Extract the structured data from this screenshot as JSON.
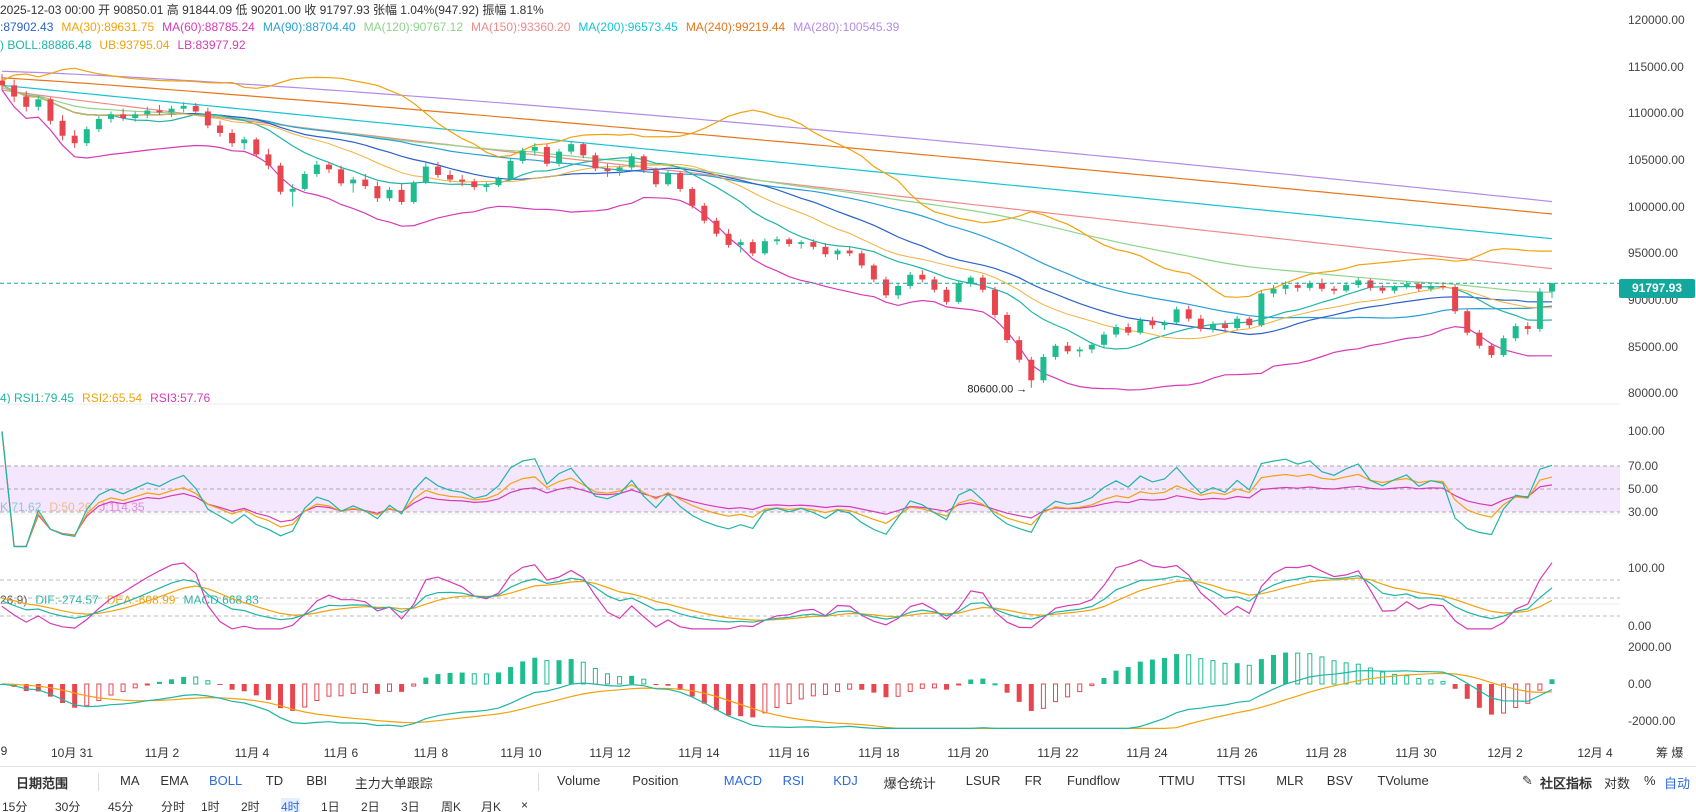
{
  "header": {
    "ohlc": "2025-12-03 00:00  开 90850.01  高 91844.09  低 90201.00  收 91797.93  张幅 1.04%(947.92)  振幅 1.81%",
    "ma_items": [
      {
        "text": ":87902.43",
        "color": "#2a62c9"
      },
      {
        "text": "MA(30):89631.75",
        "color": "#f2a20c"
      },
      {
        "text": "MA(60):88785.24",
        "color": "#d63ab8"
      },
      {
        "text": "MA(90):88704.40",
        "color": "#2b9fd8"
      },
      {
        "text": "MA(120):90767.12",
        "color": "#8fd48a"
      },
      {
        "text": "MA(150):93360.20",
        "color": "#f08a8a"
      },
      {
        "text": "MA(200):96573.45",
        "color": "#14c4d4"
      },
      {
        "text": "MA(240):99219.44",
        "color": "#e8761c"
      },
      {
        "text": "MA(280):100545.39",
        "color": "#b48ae8"
      }
    ],
    "boll_items": [
      {
        "text": ") BOLL:88886.48",
        "color": "#1fb5a6"
      },
      {
        "text": "UB:93795.04",
        "color": "#f2a20c"
      },
      {
        "text": "LB:83977.92",
        "color": "#d63ab8"
      }
    ]
  },
  "rsi_legend": [
    {
      "text": "4) RSI1:79.45",
      "color": "#1fb5a6"
    },
    {
      "text": "RSI2:65.54",
      "color": "#f2a20c"
    },
    {
      "text": "RSI3:57.76",
      "color": "#d63ab8"
    }
  ],
  "kdj_legend": [
    {
      "text": "K:71.62",
      "color": "#1fb5a6"
    },
    {
      "text": "D:50.26",
      "color": "#f2a20c"
    },
    {
      "text": "J:114.35",
      "color": "#d63ab8"
    }
  ],
  "macd_legend": [
    {
      "text": "26,9)",
      "color": "#555555"
    },
    {
      "text": "DIF:-274.57",
      "color": "#1fb5a6"
    },
    {
      "text": "DEA:-608.99",
      "color": "#f2a20c"
    },
    {
      "text": "MACD:668.83",
      "color": "#1fb5a6"
    }
  ],
  "price_axis": [
    "120000.00",
    "115000.00",
    "110000.00",
    "105000.00",
    "100000.00",
    "95000.00",
    "90000.00",
    "85000.00",
    "80000.00"
  ],
  "rsi_axis": [
    "100.00",
    "70.00",
    "50.00",
    "30.00"
  ],
  "kdj_axis": [
    "100.00",
    "0.00"
  ],
  "macd_axis": [
    "2000.00",
    "0.00",
    "-2000.00"
  ],
  "current_price": "91797.93",
  "low_label": "80600.00 →",
  "x_axis": [
    "9",
    "10月 31",
    "11月 2",
    "11月 4",
    "11月 6",
    "11月 8",
    "11月 10",
    "11月 12",
    "11月 14",
    "11月 16",
    "11月 18",
    "11月 20",
    "11月 22",
    "11月 24",
    "11月 26",
    "11月 28",
    "11月 30",
    "12月 2",
    "12月 4"
  ],
  "x_axis_extra": "筹  爆",
  "toolbar": {
    "date_range": "日期范围",
    "left_items": [
      "MA",
      "EMA",
      "BOLL",
      "TD",
      "BBI",
      "主力大单跟踪"
    ],
    "left_active": "BOLL",
    "right_items": [
      "Volume",
      "Position",
      "MACD",
      "RSI",
      "KDJ",
      "爆仓统计",
      "LSUR",
      "FR",
      "Fundflow",
      "TTMU",
      "TTSI",
      "MLR",
      "BSV",
      "TVolume"
    ],
    "right_active": [
      "MACD",
      "RSI",
      "KDJ"
    ],
    "community": "社区指标",
    "log": "对数",
    "percent": "%",
    "auto": "自动"
  },
  "bottom": {
    "items": [
      "15分",
      "30分",
      "45分",
      "分时",
      "1时",
      "2时",
      "4时",
      "1日",
      "2日",
      "3日",
      "周K",
      "月K",
      "×"
    ],
    "active": "4时"
  },
  "chart_data": [
    {
      "type": "candlestick",
      "ylim": [
        80000,
        120000
      ],
      "x_range": [
        "10月 30",
        "12月 3"
      ],
      "candles": [
        [
          113500,
          114200,
          112500,
          113000
        ],
        [
          113000,
          113600,
          111200,
          111800
        ],
        [
          111800,
          112400,
          110200,
          110700
        ],
        [
          110700,
          111900,
          110300,
          111500
        ],
        [
          111500,
          111700,
          108800,
          109200
        ],
        [
          109200,
          109800,
          107100,
          107600
        ],
        [
          107600,
          108200,
          106300,
          106800
        ],
        [
          106800,
          108600,
          106500,
          108300
        ],
        [
          108300,
          109700,
          108000,
          109400
        ],
        [
          109400,
          110200,
          109000,
          109900
        ],
        [
          109900,
          110500,
          109200,
          109500
        ],
        [
          109500,
          110200,
          109100,
          109900
        ],
        [
          109900,
          110700,
          109500,
          110300
        ],
        [
          110300,
          110900,
          109800,
          110100
        ],
        [
          110100,
          110800,
          109600,
          110500
        ],
        [
          110500,
          111200,
          110100,
          110800
        ],
        [
          110800,
          111100,
          109900,
          110200
        ],
        [
          110200,
          110600,
          108400,
          108700
        ],
        [
          108700,
          109200,
          107500,
          107900
        ],
        [
          107900,
          108300,
          106400,
          106800
        ],
        [
          106800,
          107500,
          106100,
          107200
        ],
        [
          107200,
          107400,
          105300,
          105600
        ],
        [
          105600,
          106200,
          104000,
          104400
        ],
        [
          104400,
          104700,
          101300,
          101600
        ],
        [
          101600,
          102400,
          100000,
          101900
        ],
        [
          101900,
          103800,
          101700,
          103500
        ],
        [
          103500,
          104900,
          103200,
          104500
        ],
        [
          104500,
          104800,
          103600,
          104000
        ],
        [
          104000,
          104400,
          102200,
          102500
        ],
        [
          102500,
          103200,
          101500,
          102900
        ],
        [
          102900,
          103500,
          101900,
          102200
        ],
        [
          102200,
          102700,
          100500,
          100900
        ],
        [
          100900,
          102100,
          100600,
          101800
        ],
        [
          101800,
          102500,
          100200,
          100500
        ],
        [
          100500,
          102800,
          100300,
          102600
        ],
        [
          102600,
          104700,
          102400,
          104300
        ],
        [
          104300,
          104800,
          103100,
          103400
        ],
        [
          103400,
          103900,
          102600,
          102900
        ],
        [
          102900,
          103400,
          102200,
          102700
        ],
        [
          102700,
          103000,
          101800,
          102100
        ],
        [
          102100,
          102600,
          101600,
          102300
        ],
        [
          102300,
          103200,
          102100,
          103000
        ],
        [
          103000,
          105200,
          102800,
          104900
        ],
        [
          104900,
          106300,
          104600,
          106000
        ],
        [
          106000,
          106800,
          105500,
          106400
        ],
        [
          106400,
          106700,
          104300,
          104600
        ],
        [
          104600,
          106200,
          104300,
          105900
        ],
        [
          105900,
          107000,
          105600,
          106700
        ],
        [
          106700,
          106900,
          105200,
          105500
        ],
        [
          105500,
          105800,
          103800,
          104100
        ],
        [
          104100,
          104600,
          103200,
          103800
        ],
        [
          103800,
          104400,
          103300,
          104200
        ],
        [
          104200,
          105700,
          103900,
          105400
        ],
        [
          105400,
          105600,
          103600,
          103900
        ],
        [
          103900,
          104200,
          102100,
          102400
        ],
        [
          102400,
          103900,
          102200,
          103600
        ],
        [
          103600,
          103800,
          101600,
          101900
        ],
        [
          101900,
          102100,
          99800,
          100100
        ],
        [
          100100,
          100400,
          98200,
          98500
        ],
        [
          98500,
          98800,
          96800,
          97100
        ],
        [
          97100,
          97600,
          95600,
          95900
        ],
        [
          95900,
          96500,
          95100,
          96200
        ],
        [
          96200,
          96500,
          94700,
          95000
        ],
        [
          95000,
          96600,
          94800,
          96300
        ],
        [
          96300,
          96800,
          95900,
          96500
        ],
        [
          96500,
          96700,
          95700,
          96000
        ],
        [
          96000,
          96400,
          95500,
          96200
        ],
        [
          96200,
          96500,
          95400,
          95700
        ],
        [
          95700,
          96100,
          94600,
          94900
        ],
        [
          94900,
          95500,
          94300,
          95300
        ],
        [
          95300,
          95700,
          94700,
          95000
        ],
        [
          95000,
          95300,
          93400,
          93700
        ],
        [
          93700,
          93900,
          91900,
          92200
        ],
        [
          92200,
          92500,
          90200,
          90500
        ],
        [
          90500,
          91800,
          90100,
          91500
        ],
        [
          91500,
          93000,
          91200,
          92700
        ],
        [
          92700,
          93200,
          91900,
          92200
        ],
        [
          92200,
          92500,
          90800,
          91100
        ],
        [
          91100,
          91400,
          89500,
          89800
        ],
        [
          89800,
          92100,
          89600,
          91800
        ],
        [
          91800,
          92600,
          91400,
          92400
        ],
        [
          92400,
          92700,
          90800,
          91100
        ],
        [
          91100,
          91400,
          88100,
          88400
        ],
        [
          88400,
          88700,
          85400,
          85700
        ],
        [
          85700,
          86100,
          83300,
          83600
        ],
        [
          83600,
          83900,
          80600,
          81400
        ],
        [
          81400,
          84200,
          81100,
          83900
        ],
        [
          83900,
          85300,
          83600,
          85100
        ],
        [
          85100,
          85500,
          84200,
          84500
        ],
        [
          84500,
          85000,
          83900,
          84700
        ],
        [
          84700,
          85500,
          84300,
          85200
        ],
        [
          85200,
          86600,
          84900,
          86300
        ],
        [
          86300,
          87400,
          86000,
          87100
        ],
        [
          87100,
          87500,
          86200,
          86500
        ],
        [
          86500,
          88100,
          86300,
          87800
        ],
        [
          87800,
          88200,
          86900,
          87300
        ],
        [
          87300,
          87800,
          86800,
          87600
        ],
        [
          87600,
          89300,
          87400,
          89000
        ],
        [
          89000,
          89400,
          87700,
          88000
        ],
        [
          88000,
          88400,
          86600,
          86900
        ],
        [
          86900,
          87700,
          86500,
          87400
        ],
        [
          87400,
          87800,
          86600,
          87000
        ],
        [
          87000,
          88300,
          86800,
          88000
        ],
        [
          88000,
          88200,
          87000,
          87300
        ],
        [
          87300,
          91000,
          87100,
          90700
        ],
        [
          90700,
          91600,
          90300,
          91200
        ],
        [
          91200,
          92000,
          90600,
          91600
        ],
        [
          91600,
          91900,
          90900,
          91300
        ],
        [
          91300,
          92100,
          91000,
          91800
        ],
        [
          91800,
          92300,
          90900,
          91200
        ],
        [
          91200,
          91500,
          90600,
          91000
        ],
        [
          91000,
          91900,
          90800,
          91600
        ],
        [
          91600,
          92400,
          91300,
          92100
        ],
        [
          92100,
          92300,
          91000,
          91300
        ],
        [
          91300,
          91600,
          90700,
          91000
        ],
        [
          91000,
          91600,
          90700,
          91400
        ],
        [
          91400,
          92000,
          91200,
          91700
        ],
        [
          91700,
          91900,
          90900,
          91200
        ],
        [
          91200,
          91700,
          90900,
          91500
        ],
        [
          91500,
          91900,
          91100,
          91400
        ],
        [
          91400,
          91600,
          88500,
          88800
        ],
        [
          88800,
          89000,
          86200,
          86500
        ],
        [
          86500,
          86800,
          84800,
          85100
        ],
        [
          85100,
          85400,
          83800,
          84100
        ],
        [
          84100,
          86200,
          83900,
          85900
        ],
        [
          85900,
          87500,
          85600,
          87200
        ],
        [
          87200,
          87600,
          86300,
          86900
        ],
        [
          86900,
          91300,
          86600,
          90900
        ],
        [
          90900,
          91844,
          90201,
          91798
        ]
      ],
      "indicators": {
        "BOLL": [
          88886.48,
          93795.04,
          83977.92
        ],
        "MA30": 89631.75,
        "MA60": 88785.24,
        "MA90": 88704.4,
        "MA120": 90767.12,
        "MA150": 93360.2,
        "MA200": 96573.45,
        "MA240": 99219.44,
        "MA280": 100545.39
      },
      "annotations": [
        {
          "text": "80600.00",
          "value": 80600
        }
      ],
      "last_price": 91797.93
    },
    {
      "type": "line",
      "name": "RSI",
      "ylim": [
        0,
        100
      ],
      "series": [
        {
          "name": "RSI1",
          "last": 79.45
        },
        {
          "name": "RSI2",
          "last": 65.54
        },
        {
          "name": "RSI3",
          "last": 57.76
        }
      ],
      "band": [
        30,
        70
      ]
    },
    {
      "type": "line",
      "name": "KDJ",
      "ylim": [
        0,
        100
      ],
      "series": [
        {
          "name": "K",
          "last": 71.62
        },
        {
          "name": "D",
          "last": 50.26
        },
        {
          "name": "J",
          "last": 114.35
        }
      ]
    },
    {
      "type": "bar",
      "name": "MACD",
      "ylim": [
        -2000,
        2000
      ],
      "series": [
        {
          "name": "DIF",
          "last": -274.57
        },
        {
          "name": "DEA",
          "last": -608.99
        },
        {
          "name": "MACD",
          "last": 668.83
        }
      ]
    }
  ]
}
